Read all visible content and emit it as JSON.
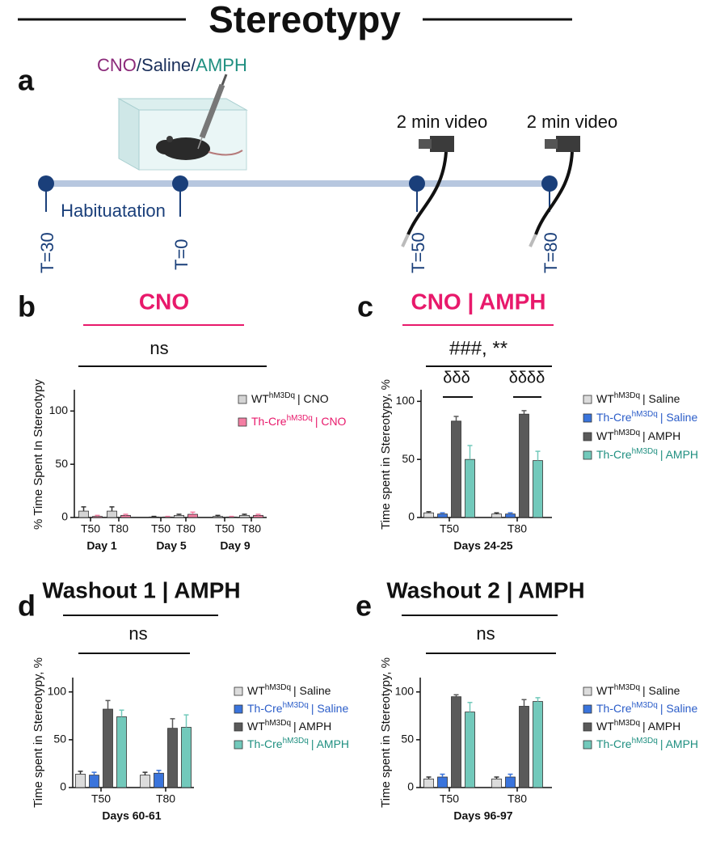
{
  "title": "Stereotypy",
  "panel_a": {
    "letter": "a",
    "treatments": [
      "CNO",
      "/",
      "Saline",
      "/",
      "AMPH"
    ],
    "habituation": "Habituatation",
    "video_labels": [
      "2 min video",
      "2 min video"
    ],
    "timepoints": [
      "T=30",
      "T=0",
      "T=50",
      "T=80"
    ]
  },
  "chart_data": [
    {
      "type": "bar",
      "letter": "b",
      "title": "CNO",
      "title_color": "#e8196b",
      "annotations": [
        "ns"
      ],
      "y_label": "% Time Spent In Stereotypy",
      "categories": [
        "T50",
        "T80",
        "T50",
        "T80",
        "T50",
        "T80"
      ],
      "groups": [
        "Day 1",
        "Day 5",
        "Day 9"
      ],
      "ylim": [
        0,
        120
      ],
      "yticks": [
        0,
        50,
        100
      ],
      "series": [
        {
          "genotype": "WT",
          "construct": "hM3Dq",
          "treatment": "| CNO",
          "color": "#d4d4d4",
          "legend_text_color": "#111",
          "values": [
            6,
            6,
            0.5,
            2,
            1,
            2
          ],
          "errors": [
            4,
            4,
            0.5,
            1,
            1,
            1
          ]
        },
        {
          "genotype": "Th-Cre",
          "construct": "hM3Dq",
          "treatment": "| CNO",
          "color": "#f47ea3",
          "legend_text_color": "#e8196b",
          "values": [
            1,
            2,
            0.5,
            3,
            0.5,
            2
          ],
          "errors": [
            1,
            1,
            0.5,
            2,
            0.5,
            1
          ]
        }
      ]
    },
    {
      "type": "bar",
      "letter": "c",
      "title": "CNO | AMPH",
      "title_color": "#e8196b",
      "annotations": [
        "###, **",
        "δδδ",
        "δδδδ"
      ],
      "y_label": "Time spent in Stereotypy, %",
      "categories": [
        "T50",
        "T80"
      ],
      "groups": [
        "Days 24-25"
      ],
      "ylim": [
        0,
        110
      ],
      "yticks": [
        0,
        50,
        100
      ],
      "series": [
        {
          "genotype": "WT",
          "construct": "hM3Dq",
          "treatment": "| Saline",
          "color": "#dcdcdc",
          "legend_text_color": "#111",
          "values": [
            4,
            3
          ],
          "errors": [
            1,
            1
          ]
        },
        {
          "genotype": "Th-Cre",
          "construct": "hM3Dq",
          "treatment": "| Saline",
          "color": "#3a74dc",
          "legend_text_color": "#2a5cc8",
          "values": [
            3,
            3
          ],
          "errors": [
            1,
            1
          ]
        },
        {
          "genotype": "WT",
          "construct": "hM3Dq",
          "treatment": "| AMPH",
          "color": "#5a5a5a",
          "legend_text_color": "#111",
          "values": [
            83,
            89
          ],
          "errors": [
            4,
            3
          ]
        },
        {
          "genotype": "Th-Cre",
          "construct": "hM3Dq",
          "treatment": "| AMPH",
          "color": "#72c9bb",
          "legend_text_color": "#1f8f80",
          "values": [
            50,
            49
          ],
          "errors": [
            12,
            8
          ]
        }
      ]
    },
    {
      "type": "bar",
      "letter": "d",
      "title": "Washout 1 | AMPH",
      "title_color": "#111",
      "annotations": [
        "ns"
      ],
      "y_label": "Time spent in Stereotypy, %",
      "categories": [
        "T50",
        "T80"
      ],
      "groups": [
        "Days 60-61"
      ],
      "ylim": [
        0,
        115
      ],
      "yticks": [
        0,
        50,
        100
      ],
      "series": [
        {
          "genotype": "WT",
          "construct": "hM3Dq",
          "treatment": "| Saline",
          "color": "#dcdcdc",
          "legend_text_color": "#111",
          "values": [
            14,
            13
          ],
          "errors": [
            3,
            3
          ]
        },
        {
          "genotype": "Th-Cre",
          "construct": "hM3Dq",
          "treatment": "| Saline",
          "color": "#3a74dc",
          "legend_text_color": "#2a5cc8",
          "values": [
            13,
            15
          ],
          "errors": [
            3,
            3
          ]
        },
        {
          "genotype": "WT",
          "construct": "hM3Dq",
          "treatment": "| AMPH",
          "color": "#5a5a5a",
          "legend_text_color": "#111",
          "values": [
            82,
            62
          ],
          "errors": [
            9,
            10
          ]
        },
        {
          "genotype": "Th-Cre",
          "construct": "hM3Dq",
          "treatment": "| AMPH",
          "color": "#72c9bb",
          "legend_text_color": "#1f8f80",
          "values": [
            74,
            63
          ],
          "errors": [
            7,
            13
          ]
        }
      ]
    },
    {
      "type": "bar",
      "letter": "e",
      "title": "Washout 2 | AMPH",
      "title_color": "#111",
      "annotations": [
        "ns"
      ],
      "y_label": "Time spent in Stereotypy, %",
      "categories": [
        "T50",
        "T80"
      ],
      "groups": [
        "Days 96-97"
      ],
      "ylim": [
        0,
        115
      ],
      "yticks": [
        0,
        50,
        100
      ],
      "series": [
        {
          "genotype": "WT",
          "construct": "hM3Dq",
          "treatment": "| Saline",
          "color": "#dcdcdc",
          "legend_text_color": "#111",
          "values": [
            9,
            9
          ],
          "errors": [
            2,
            2
          ]
        },
        {
          "genotype": "Th-Cre",
          "construct": "hM3Dq",
          "treatment": "| Saline",
          "color": "#3a74dc",
          "legend_text_color": "#2a5cc8",
          "values": [
            11,
            11
          ],
          "errors": [
            3,
            3
          ]
        },
        {
          "genotype": "WT",
          "construct": "hM3Dq",
          "treatment": "| AMPH",
          "color": "#5a5a5a",
          "legend_text_color": "#111",
          "values": [
            95,
            85
          ],
          "errors": [
            2,
            7
          ]
        },
        {
          "genotype": "Th-Cre",
          "construct": "hM3Dq",
          "treatment": "| AMPH",
          "color": "#72c9bb",
          "legend_text_color": "#1f8f80",
          "values": [
            79,
            90
          ],
          "errors": [
            10,
            4
          ]
        }
      ]
    }
  ]
}
